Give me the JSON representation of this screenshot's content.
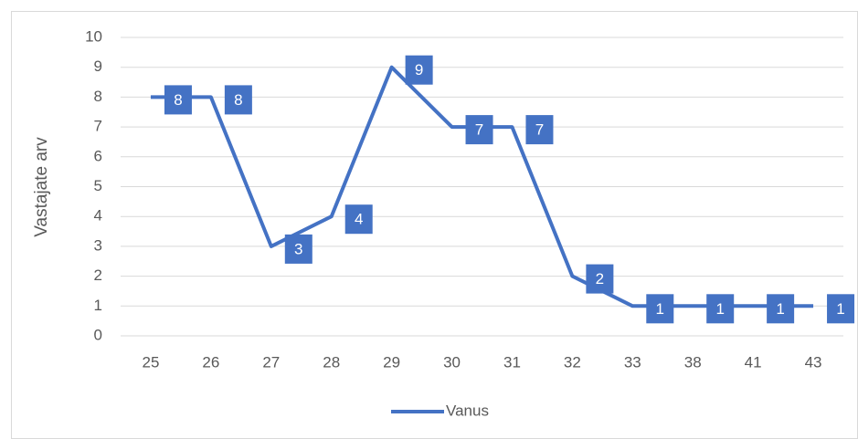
{
  "chart_data": {
    "type": "line",
    "categories": [
      "25",
      "26",
      "27",
      "28",
      "29",
      "30",
      "31",
      "32",
      "33",
      "38",
      "41",
      "43"
    ],
    "series": [
      {
        "name": "Vanus",
        "color": "#4472c4",
        "values": [
          8,
          8,
          3,
          4,
          9,
          7,
          7,
          2,
          1,
          1,
          1,
          1
        ]
      }
    ],
    "ylabel": "Vastajate arv",
    "ylim": [
      0,
      10
    ],
    "yticks": [
      0,
      1,
      2,
      3,
      4,
      5,
      6,
      7,
      8,
      9,
      10
    ],
    "grid": true,
    "legend": "bottom"
  }
}
